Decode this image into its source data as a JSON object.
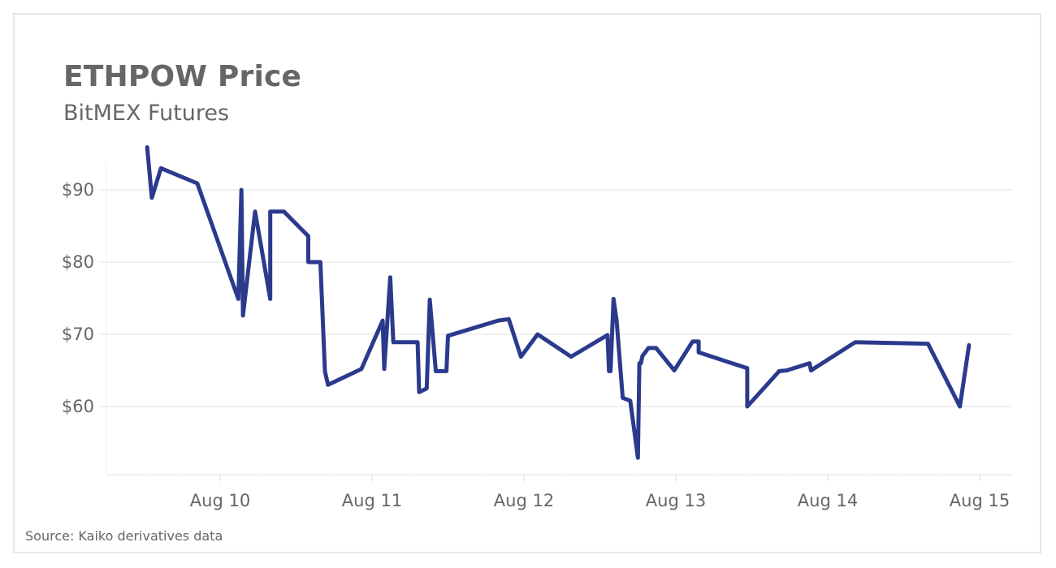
{
  "header": {
    "title": "ETHPOW Price",
    "subtitle": "BitMEX Futures"
  },
  "footer": {
    "source": "Source: Kaiko derivatives data"
  },
  "style": {
    "line_color": "#2b3a8c",
    "grid_color": "#ececec",
    "text_color": "#666666"
  },
  "chart_data": {
    "type": "line",
    "title": "ETHPOW Price",
    "subtitle": "BitMEX Futures",
    "xlabel": "",
    "ylabel": "",
    "source": "Source: Kaiko derivatives data",
    "x_unit": "day of August (fractional)",
    "xlim": [
      9.36,
      15.22
    ],
    "ylim": [
      50.5,
      97.5
    ],
    "x_ticks": [
      {
        "value": 10,
        "label": "Aug 10"
      },
      {
        "value": 11,
        "label": "Aug 11"
      },
      {
        "value": 12,
        "label": "Aug 12"
      },
      {
        "value": 13,
        "label": "Aug 13"
      },
      {
        "value": 14,
        "label": "Aug 14"
      },
      {
        "value": 15,
        "label": "Aug 15"
      }
    ],
    "y_ticks": [
      {
        "value": 60,
        "label": "$60"
      },
      {
        "value": 70,
        "label": "$70"
      },
      {
        "value": 80,
        "label": "$80"
      },
      {
        "value": 90,
        "label": "$90"
      }
    ],
    "grid": true,
    "legend": null,
    "series": [
      {
        "name": "ETHPOW",
        "x": [
          9.52,
          9.55,
          9.61,
          9.85,
          10.12,
          10.14,
          10.15,
          10.23,
          10.33,
          10.33,
          10.42,
          10.58,
          10.58,
          10.66,
          10.69,
          10.71,
          10.93,
          11.07,
          11.08,
          11.12,
          11.14,
          11.3,
          11.31,
          11.36,
          11.38,
          11.42,
          11.49,
          11.5,
          11.83,
          11.9,
          11.98,
          12.09,
          12.31,
          12.55,
          12.56,
          12.57,
          12.59,
          12.61,
          12.65,
          12.7,
          12.75,
          12.76,
          12.77,
          12.78,
          12.82,
          12.87,
          12.99,
          13.11,
          13.15,
          13.15,
          13.47,
          13.47,
          13.68,
          13.73,
          13.82,
          13.88,
          13.89,
          14.18,
          14.66,
          14.87,
          14.93
        ],
        "y": [
          95.9,
          88.9,
          93.0,
          90.9,
          74.9,
          90.0,
          72.6,
          87.0,
          74.9,
          87.0,
          87.0,
          83.6,
          80.0,
          80.0,
          64.9,
          63.0,
          65.2,
          71.9,
          65.2,
          77.9,
          68.9,
          68.9,
          62.0,
          62.5,
          74.8,
          64.9,
          64.9,
          69.8,
          71.9,
          72.1,
          66.9,
          70.0,
          66.9,
          69.9,
          64.9,
          64.9,
          74.9,
          71.9,
          61.2,
          60.8,
          52.9,
          66.0,
          66.0,
          67.0,
          68.1,
          68.1,
          65.0,
          69.0,
          69.0,
          67.5,
          65.3,
          60.0,
          64.9,
          65.0,
          65.6,
          66.0,
          65.0,
          68.9,
          68.7,
          60.0,
          68.5
        ]
      }
    ]
  }
}
